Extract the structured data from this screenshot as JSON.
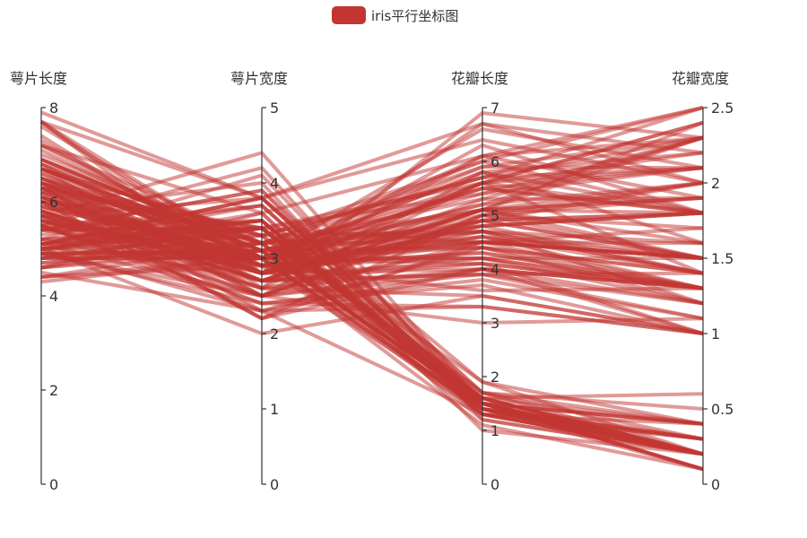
{
  "legend": {
    "label": "iris平行坐标图"
  },
  "colors": {
    "series": "#c23531",
    "axis": "#333333"
  },
  "chart_data": {
    "type": "parallel",
    "series": [
      {
        "name": "iris平行坐标图"
      }
    ],
    "axes": [
      {
        "name": "萼片长度",
        "min": 0,
        "max": 8,
        "ticks": [
          0,
          2,
          4,
          6,
          8
        ]
      },
      {
        "name": "萼片宽度",
        "min": 0,
        "max": 5,
        "ticks": [
          0,
          1,
          2,
          3,
          4,
          5
        ]
      },
      {
        "name": "花瓣长度",
        "min": 0,
        "max": 7,
        "ticks": [
          0,
          1,
          2,
          3,
          4,
          5,
          6,
          7
        ]
      },
      {
        "name": "花瓣宽度",
        "min": 0,
        "max": 2.5,
        "ticks": [
          0,
          0.5,
          1,
          1.5,
          2,
          2.5
        ]
      }
    ],
    "data": [
      [
        5.1,
        3.5,
        1.4,
        0.2
      ],
      [
        4.9,
        3.0,
        1.4,
        0.2
      ],
      [
        4.7,
        3.2,
        1.3,
        0.2
      ],
      [
        4.6,
        3.1,
        1.5,
        0.2
      ],
      [
        5.0,
        3.6,
        1.4,
        0.2
      ],
      [
        5.4,
        3.9,
        1.7,
        0.4
      ],
      [
        4.6,
        3.4,
        1.4,
        0.3
      ],
      [
        5.0,
        3.4,
        1.5,
        0.2
      ],
      [
        4.4,
        2.9,
        1.4,
        0.2
      ],
      [
        4.9,
        3.1,
        1.5,
        0.1
      ],
      [
        5.4,
        3.7,
        1.5,
        0.2
      ],
      [
        4.8,
        3.4,
        1.6,
        0.2
      ],
      [
        4.8,
        3.0,
        1.4,
        0.1
      ],
      [
        4.3,
        3.0,
        1.1,
        0.1
      ],
      [
        5.8,
        4.0,
        1.2,
        0.2
      ],
      [
        5.7,
        4.4,
        1.5,
        0.4
      ],
      [
        5.4,
        3.9,
        1.3,
        0.4
      ],
      [
        5.1,
        3.5,
        1.4,
        0.3
      ],
      [
        5.7,
        3.8,
        1.7,
        0.3
      ],
      [
        5.1,
        3.8,
        1.5,
        0.3
      ],
      [
        5.4,
        3.4,
        1.7,
        0.2
      ],
      [
        5.1,
        3.7,
        1.5,
        0.4
      ],
      [
        4.6,
        3.6,
        1.0,
        0.2
      ],
      [
        5.1,
        3.3,
        1.7,
        0.5
      ],
      [
        4.8,
        3.4,
        1.9,
        0.2
      ],
      [
        5.0,
        3.0,
        1.6,
        0.2
      ],
      [
        5.0,
        3.4,
        1.6,
        0.4
      ],
      [
        5.2,
        3.5,
        1.5,
        0.2
      ],
      [
        5.2,
        3.4,
        1.4,
        0.2
      ],
      [
        4.7,
        3.2,
        1.6,
        0.2
      ],
      [
        4.8,
        3.1,
        1.6,
        0.2
      ],
      [
        5.4,
        3.4,
        1.5,
        0.4
      ],
      [
        5.2,
        4.1,
        1.5,
        0.1
      ],
      [
        5.5,
        4.2,
        1.4,
        0.2
      ],
      [
        4.9,
        3.1,
        1.5,
        0.1
      ],
      [
        5.0,
        3.2,
        1.2,
        0.2
      ],
      [
        5.5,
        3.5,
        1.3,
        0.2
      ],
      [
        4.9,
        3.1,
        1.5,
        0.1
      ],
      [
        4.4,
        3.0,
        1.3,
        0.2
      ],
      [
        5.1,
        3.4,
        1.5,
        0.2
      ],
      [
        5.0,
        3.5,
        1.3,
        0.3
      ],
      [
        4.5,
        2.3,
        1.3,
        0.3
      ],
      [
        4.4,
        3.2,
        1.3,
        0.2
      ],
      [
        5.0,
        3.5,
        1.6,
        0.6
      ],
      [
        5.1,
        3.8,
        1.9,
        0.4
      ],
      [
        4.8,
        3.0,
        1.4,
        0.3
      ],
      [
        5.1,
        3.8,
        1.6,
        0.2
      ],
      [
        4.6,
        3.2,
        1.4,
        0.2
      ],
      [
        5.3,
        3.7,
        1.5,
        0.2
      ],
      [
        5.0,
        3.3,
        1.4,
        0.2
      ],
      [
        7.0,
        3.2,
        4.7,
        1.4
      ],
      [
        6.4,
        3.2,
        4.5,
        1.5
      ],
      [
        6.9,
        3.1,
        4.9,
        1.5
      ],
      [
        5.5,
        2.3,
        4.0,
        1.3
      ],
      [
        6.5,
        2.8,
        4.6,
        1.5
      ],
      [
        5.7,
        2.8,
        4.5,
        1.3
      ],
      [
        6.3,
        3.3,
        4.7,
        1.6
      ],
      [
        4.9,
        2.4,
        3.3,
        1.0
      ],
      [
        6.6,
        2.9,
        4.6,
        1.3
      ],
      [
        5.2,
        2.7,
        3.9,
        1.4
      ],
      [
        5.0,
        2.0,
        3.5,
        1.0
      ],
      [
        5.9,
        3.0,
        4.2,
        1.5
      ],
      [
        6.0,
        2.2,
        4.0,
        1.0
      ],
      [
        6.1,
        2.9,
        4.7,
        1.4
      ],
      [
        5.6,
        2.9,
        3.6,
        1.3
      ],
      [
        6.7,
        3.1,
        4.4,
        1.4
      ],
      [
        5.6,
        3.0,
        4.5,
        1.5
      ],
      [
        5.8,
        2.7,
        4.1,
        1.0
      ],
      [
        6.2,
        2.2,
        4.5,
        1.5
      ],
      [
        5.6,
        2.5,
        3.9,
        1.1
      ],
      [
        5.9,
        3.2,
        4.8,
        1.8
      ],
      [
        6.1,
        2.8,
        4.0,
        1.3
      ],
      [
        6.3,
        2.5,
        4.9,
        1.5
      ],
      [
        6.1,
        2.8,
        4.7,
        1.2
      ],
      [
        6.4,
        2.9,
        4.3,
        1.3
      ],
      [
        6.6,
        3.0,
        4.4,
        1.4
      ],
      [
        6.8,
        2.8,
        4.8,
        1.4
      ],
      [
        6.7,
        3.0,
        5.0,
        1.7
      ],
      [
        6.0,
        2.9,
        4.5,
        1.5
      ],
      [
        5.7,
        2.6,
        3.5,
        1.0
      ],
      [
        5.5,
        2.4,
        3.8,
        1.1
      ],
      [
        5.5,
        2.4,
        3.7,
        1.0
      ],
      [
        5.8,
        2.7,
        3.9,
        1.2
      ],
      [
        6.0,
        2.7,
        5.1,
        1.6
      ],
      [
        5.4,
        3.0,
        4.5,
        1.5
      ],
      [
        6.0,
        3.4,
        4.5,
        1.6
      ],
      [
        6.7,
        3.1,
        4.7,
        1.5
      ],
      [
        6.3,
        2.3,
        4.4,
        1.3
      ],
      [
        5.6,
        3.0,
        4.1,
        1.3
      ],
      [
        5.5,
        2.5,
        4.0,
        1.3
      ],
      [
        5.5,
        2.6,
        4.4,
        1.2
      ],
      [
        6.1,
        3.0,
        4.6,
        1.4
      ],
      [
        5.8,
        2.6,
        4.0,
        1.2
      ],
      [
        5.0,
        2.3,
        3.3,
        1.0
      ],
      [
        5.6,
        2.7,
        4.2,
        1.3
      ],
      [
        5.7,
        3.0,
        4.2,
        1.2
      ],
      [
        5.7,
        2.9,
        4.2,
        1.3
      ],
      [
        6.2,
        2.9,
        4.3,
        1.3
      ],
      [
        5.1,
        2.5,
        3.0,
        1.1
      ],
      [
        5.7,
        2.8,
        4.1,
        1.3
      ],
      [
        6.3,
        3.3,
        6.0,
        2.5
      ],
      [
        5.8,
        2.7,
        5.1,
        1.9
      ],
      [
        7.1,
        3.0,
        5.9,
        2.1
      ],
      [
        6.3,
        2.9,
        5.6,
        1.8
      ],
      [
        6.5,
        3.0,
        5.8,
        2.2
      ],
      [
        7.6,
        3.0,
        6.6,
        2.1
      ],
      [
        4.9,
        2.5,
        4.5,
        1.7
      ],
      [
        7.3,
        2.9,
        6.3,
        1.8
      ],
      [
        6.7,
        2.5,
        5.8,
        1.8
      ],
      [
        7.2,
        3.6,
        6.1,
        2.5
      ],
      [
        6.5,
        3.2,
        5.1,
        2.0
      ],
      [
        6.4,
        2.7,
        5.3,
        1.9
      ],
      [
        6.8,
        3.0,
        5.5,
        2.1
      ],
      [
        5.7,
        2.5,
        5.0,
        2.0
      ],
      [
        5.8,
        2.8,
        5.1,
        2.4
      ],
      [
        6.4,
        3.2,
        5.3,
        2.3
      ],
      [
        6.5,
        3.0,
        5.5,
        1.8
      ],
      [
        7.7,
        3.8,
        6.7,
        2.2
      ],
      [
        7.7,
        2.6,
        6.9,
        2.3
      ],
      [
        6.0,
        2.2,
        5.0,
        1.5
      ],
      [
        6.9,
        3.2,
        5.7,
        2.3
      ],
      [
        5.6,
        2.8,
        4.9,
        2.0
      ],
      [
        7.7,
        2.8,
        6.7,
        2.0
      ],
      [
        6.3,
        2.7,
        4.9,
        1.8
      ],
      [
        6.7,
        3.3,
        5.7,
        2.1
      ],
      [
        7.2,
        3.2,
        6.0,
        1.8
      ],
      [
        6.2,
        2.8,
        4.8,
        1.8
      ],
      [
        6.1,
        3.0,
        4.9,
        1.8
      ],
      [
        6.4,
        2.8,
        5.6,
        2.1
      ],
      [
        7.2,
        3.0,
        5.8,
        1.6
      ],
      [
        7.4,
        2.8,
        6.1,
        1.9
      ],
      [
        7.9,
        3.8,
        6.4,
        2.0
      ],
      [
        6.4,
        2.8,
        5.6,
        2.2
      ],
      [
        6.3,
        2.8,
        5.1,
        1.5
      ],
      [
        6.1,
        2.6,
        5.6,
        1.4
      ],
      [
        7.7,
        3.0,
        6.1,
        2.3
      ],
      [
        6.3,
        3.4,
        5.6,
        2.4
      ],
      [
        6.4,
        3.1,
        5.5,
        1.8
      ],
      [
        6.0,
        3.0,
        4.8,
        1.8
      ],
      [
        6.9,
        3.1,
        5.4,
        2.1
      ],
      [
        6.7,
        3.1,
        5.6,
        2.4
      ],
      [
        6.9,
        3.1,
        5.1,
        2.3
      ],
      [
        5.8,
        2.7,
        5.1,
        1.9
      ],
      [
        6.8,
        3.2,
        5.9,
        2.3
      ],
      [
        6.7,
        3.3,
        5.7,
        2.5
      ],
      [
        6.7,
        3.0,
        5.2,
        2.3
      ],
      [
        6.3,
        2.5,
        5.0,
        1.9
      ],
      [
        6.5,
        3.0,
        5.2,
        2.0
      ],
      [
        6.2,
        3.4,
        5.4,
        2.3
      ],
      [
        5.9,
        3.0,
        5.1,
        1.8
      ]
    ]
  }
}
